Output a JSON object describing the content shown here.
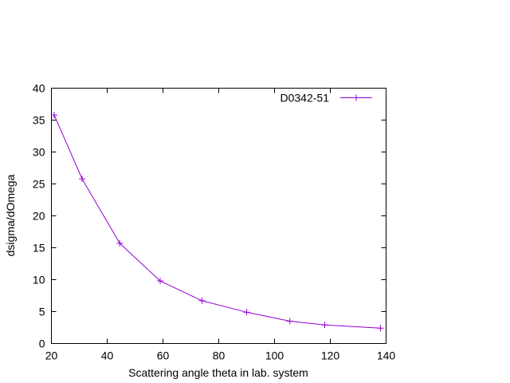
{
  "chart_data": {
    "type": "line",
    "title": "",
    "xlabel": "Scattering angle theta in lab. system",
    "ylabel": "dsigma/dOmega",
    "xlim": [
      20,
      140
    ],
    "ylim": [
      0,
      40
    ],
    "xticks": [
      20,
      40,
      60,
      80,
      100,
      120,
      140
    ],
    "yticks": [
      0,
      5,
      10,
      15,
      20,
      25,
      30,
      35,
      40
    ],
    "grid": false,
    "legend_position": "top-right",
    "series": [
      {
        "name": "D0342-51",
        "color": "#9400d3",
        "marker": "plus",
        "x": [
          21,
          31,
          44.5,
          59,
          74,
          90,
          105.5,
          118,
          138
        ],
        "y": [
          35.8,
          25.8,
          15.7,
          9.8,
          6.7,
          4.9,
          3.5,
          2.9,
          2.4
        ]
      }
    ]
  }
}
